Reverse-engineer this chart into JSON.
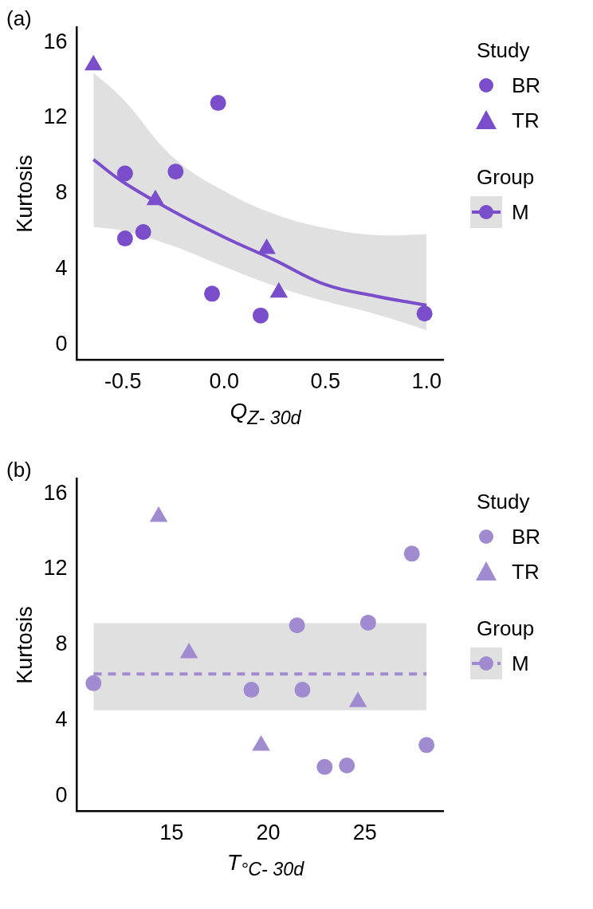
{
  "chart_data": [
    {
      "type": "scatter",
      "title": "(a)",
      "xlabel": "Q$_{Z- 30d}$",
      "ylabel": "Kurtosis",
      "legend_title": "Study",
      "annotations": [
        "Group"
      ],
      "legend": "right",
      "grid": false,
      "xlim": [
        -0.728,
        1.082
      ],
      "xticks": [
        -0.5,
        {
          "value": 0,
          "label": "0.0"
        },
        0.5,
        {
          "value": 1,
          "label": "1.0"
        }
      ],
      "ylim": [
        -0.8,
        16.8
      ],
      "yticks": [
        0,
        4,
        8,
        12,
        16
      ],
      "series": [
        {
          "name": "BR",
          "marker": "circle",
          "color": "#7a4ecb",
          "x": [
            -0.03,
            -0.49,
            -0.24,
            -0.49,
            -0.4,
            -0.06,
            0.18,
            0.99
          ],
          "values": [
            12.8,
            9.07,
            9.17,
            5.63,
            5.97,
            2.71,
            1.56,
            1.66
          ]
        },
        {
          "name": "TR",
          "marker": "triangle",
          "color": "#7a4ecb",
          "x": [
            -0.646,
            -0.34,
            0.21,
            0.27
          ],
          "values": [
            14.8,
            7.67,
            5.09,
            2.78
          ]
        },
        {
          "name": "M",
          "type": "line",
          "marker": "none",
          "line_style": "solid",
          "color": "#7a4ecb",
          "x": [
            -0.646,
            -0.5,
            -0.25,
            0,
            0.25,
            0.5,
            0.75,
            1.0
          ],
          "values": [
            9.8,
            8.62,
            7.06,
            5.7,
            4.48,
            3.19,
            2.58,
            2.1
          ],
          "lower": [
            6.24,
            6.04,
            5.22,
            4.14,
            3.12,
            2.31,
            1.63,
            0.79
          ],
          "upper": [
            14.4,
            13.0,
            9.9,
            8.14,
            6.92,
            6.18,
            5.81,
            5.86
          ]
        }
      ]
    },
    {
      "type": "scatter",
      "title": "(b)",
      "xlabel": "T$_{°C- 30d}$",
      "ylabel": "Kurtosis",
      "legend_title": "Study",
      "annotations": [
        "Group"
      ],
      "legend": "right",
      "grid": false,
      "xlim": [
        10.1,
        29.05
      ],
      "xticks": [
        15,
        20,
        25
      ],
      "ylim": [
        -0.8,
        16.8
      ],
      "yticks": [
        0,
        4,
        8,
        12,
        16
      ],
      "series": [
        {
          "name": "BR",
          "marker": "circle",
          "color": "#a08bd0",
          "x": [
            10.96,
            19.13,
            21.49,
            21.77,
            25.17,
            22.92,
            24.07,
            27.43,
            28.19
          ],
          "values": [
            5.98,
            5.63,
            9.04,
            5.63,
            9.18,
            1.55,
            1.63,
            12.83,
            2.71
          ]
        },
        {
          "name": "TR",
          "marker": "triangle",
          "color": "#a08bd0",
          "x": [
            14.33,
            15.9,
            19.63,
            24.64
          ],
          "values": [
            14.78,
            7.57,
            2.68,
            4.99
          ]
        },
        {
          "name": "M",
          "type": "line",
          "marker": "none",
          "line_style": "dashed",
          "color": "#a08bd0",
          "x": [
            10.96,
            28.19
          ],
          "values": [
            6.47,
            6.47
          ],
          "lower": [
            4.55,
            4.55
          ],
          "upper": [
            9.16,
            9.16
          ]
        }
      ]
    }
  ]
}
